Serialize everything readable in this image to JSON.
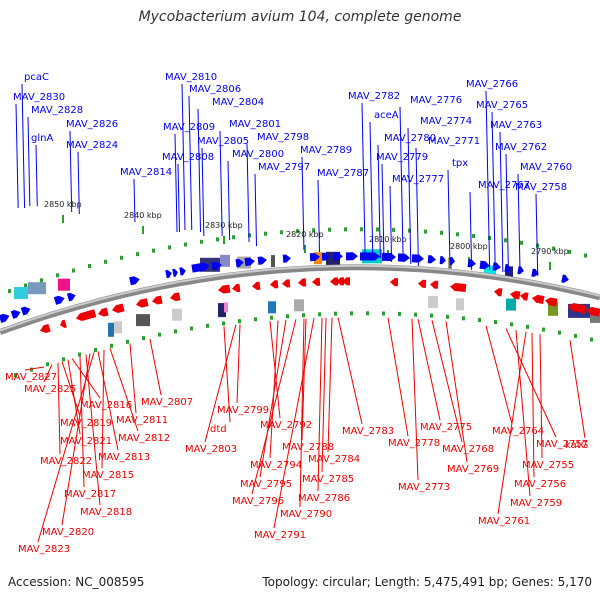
{
  "title": "Mycobacterium avium 104, complete genome",
  "footer": {
    "accession": "Accession: NC_008595",
    "summary": "Topology: circular; Length: 5,475,491 bp; Genes: 5,170"
  },
  "colors": {
    "forward": "#0000ee",
    "reverse": "#ee0000",
    "backbone": "#888888",
    "tick": "#2ca02c"
  },
  "scale_labels": [
    "2850 kbp",
    "2840 kbp",
    "2830 kbp",
    "2820 kbp",
    "2810 kbp",
    "2800 kbp",
    "2790 kbp"
  ],
  "forward_genes": [
    "pcaC",
    "MAV_2830",
    "MAV_2828",
    "glnA",
    "MAV_2826",
    "MAV_2824",
    "MAV_2814",
    "MAV_2810",
    "MAV_2806",
    "MAV_2804",
    "MAV_2809",
    "MAV_2808",
    "MAV_2805",
    "MAV_2801",
    "MAV_2798",
    "MAV_2800",
    "MAV_2797",
    "MAV_2789",
    "MAV_2787",
    "MAV_2782",
    "aceA",
    "MAV_2780",
    "MAV_2779",
    "MAV_2777",
    "MAV_2776",
    "MAV_2774",
    "MAV_2771",
    "tpx",
    "MAV_2767",
    "MAV_2766",
    "MAV_2765",
    "MAV_2763",
    "MAV_2762",
    "MAV_2760",
    "MAV_2758"
  ],
  "reverse_genes": [
    "MAV_2827",
    "MAV_2825",
    "MAV_2816",
    "MAV_2819",
    "MAV_2821",
    "MAV_2822",
    "MAV_2817",
    "MAV_2818",
    "MAV_2820",
    "MAV_2823",
    "MAV_2813",
    "MAV_2815",
    "MAV_2812",
    "MAV_2811",
    "MAV_2807",
    "MAV_2799",
    "dtd",
    "MAV_2803",
    "MAV_2792",
    "MAV_2794",
    "MAV_2795",
    "MAV_2796",
    "MAV_2790",
    "MAV_2791",
    "MAV_2788",
    "MAV_2786",
    "MAV_2783",
    "MAV_2784",
    "MAV_2785",
    "MAV_2778",
    "MAV_2775",
    "MAV_2768",
    "MAV_2769",
    "MAV_2773",
    "MAV_2764",
    "MAV_2757",
    "MAV_2759",
    "MAV_2761",
    "MAV_2756",
    "MAV_2755",
    "katG"
  ]
}
